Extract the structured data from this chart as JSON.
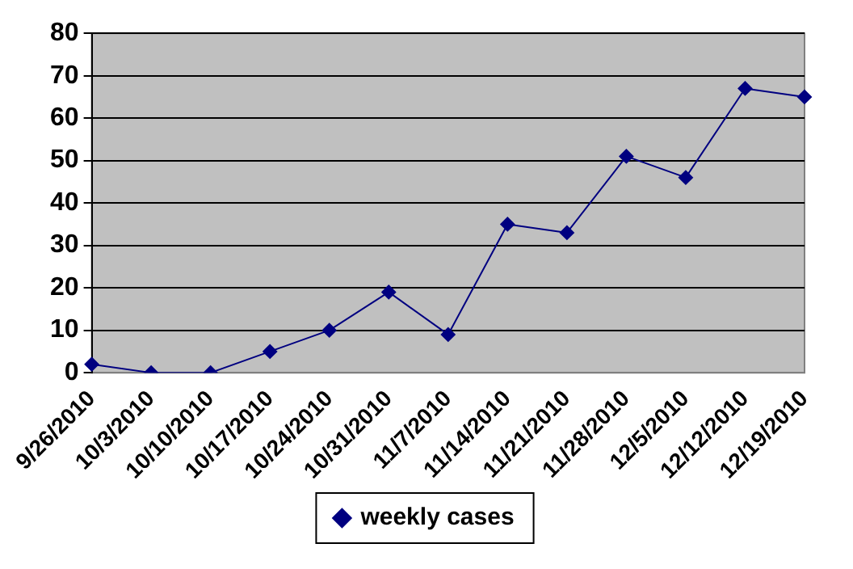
{
  "chart_data": {
    "type": "line",
    "categories": [
      "9/26/2010",
      "10/3/2010",
      "10/10/2010",
      "10/17/2010",
      "10/24/2010",
      "10/31/2010",
      "11/7/2010",
      "11/14/2010",
      "11/21/2010",
      "11/28/2010",
      "12/5/2010",
      "12/12/2010",
      "12/19/2010"
    ],
    "series": [
      {
        "name": "weekly cases",
        "color": "#000080",
        "values": [
          2,
          0,
          0,
          5,
          10,
          19,
          9,
          35,
          33,
          51,
          46,
          67,
          65
        ]
      }
    ],
    "ylim": [
      0,
      80
    ],
    "yticks": [
      0,
      10,
      20,
      30,
      40,
      50,
      60,
      70,
      80
    ],
    "grid": "y",
    "legend": "bottom",
    "marker": "diamond"
  }
}
